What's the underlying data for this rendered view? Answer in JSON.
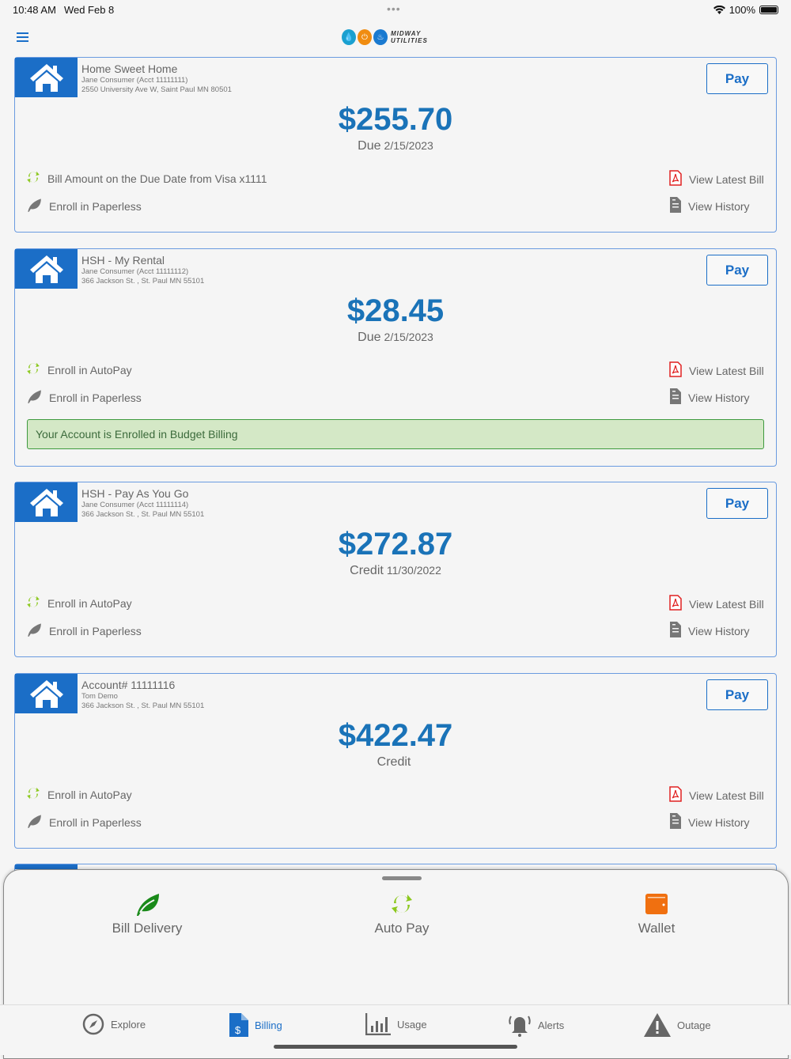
{
  "status": {
    "time": "10:48 AM",
    "date": "Wed Feb 8",
    "battery": "100%"
  },
  "header": {
    "logo_text": "MIDWAY UTILITIES"
  },
  "accounts": [
    {
      "name": "Home Sweet Home",
      "holder": "Jane Consumer (Acct 11111111)",
      "address": "2550 University Ave W, Saint Paul MN 80501",
      "pay": "Pay",
      "amount": "$255.70",
      "due_label": "Due",
      "due_date": "2/15/2023",
      "autopay": "Bill Amount on the Due Date from Visa x1111",
      "paperless": "Enroll in Paperless",
      "latest_bill": "View Latest Bill",
      "history": "View History"
    },
    {
      "name": "HSH - My Rental",
      "holder": "Jane Consumer (Acct 11111112)",
      "address": "366 Jackson St. , St. Paul MN 55101",
      "pay": "Pay",
      "amount": "$28.45",
      "due_label": "Due",
      "due_date": "2/15/2023",
      "autopay": "Enroll in AutoPay",
      "paperless": "Enroll in Paperless",
      "latest_bill": "View Latest Bill",
      "history": "View History",
      "banner": "Your Account is Enrolled in Budget Billing"
    },
    {
      "name": "HSH - Pay As You Go",
      "holder": "Jane Consumer (Acct 11111114)",
      "address": "366 Jackson St. , St. Paul MN 55101",
      "pay": "Pay",
      "amount": "$272.87",
      "due_label": "Credit",
      "due_date": "11/30/2022",
      "autopay": "Enroll in AutoPay",
      "paperless": "Enroll in Paperless",
      "latest_bill": "View Latest Bill",
      "history": "View History"
    },
    {
      "name": "Account# 11111116",
      "holder": "Tom Demo",
      "address": "366 Jackson St. , St. Paul MN 55101",
      "pay": "Pay",
      "amount": "$422.47",
      "due_label": "Credit",
      "due_date": "",
      "autopay": "Enroll in AutoPay",
      "paperless": "Enroll in Paperless",
      "latest_bill": "View Latest Bill",
      "history": "View History"
    }
  ],
  "sheet": {
    "items": [
      {
        "label": "Bill Delivery",
        "icon": "leaf-icon",
        "color": "#1a8a1a"
      },
      {
        "label": "Auto Pay",
        "icon": "autopay-icon",
        "color": "#8cc81e"
      },
      {
        "label": "Wallet",
        "icon": "wallet-icon",
        "color": "#f07010"
      }
    ]
  },
  "tabs": [
    {
      "label": "Explore",
      "icon": "compass-icon"
    },
    {
      "label": "Billing",
      "icon": "billing-icon",
      "active": true
    },
    {
      "label": "Usage",
      "icon": "chart-icon"
    },
    {
      "label": "Alerts",
      "icon": "bell-icon"
    },
    {
      "label": "Outage",
      "icon": "warning-icon"
    }
  ],
  "colors": {
    "primary": "#1b6ec7",
    "amount": "#1a73b8",
    "autopay": "#8cc81e",
    "pdf": "#e02020",
    "banner_bg": "#d4e8c6"
  }
}
